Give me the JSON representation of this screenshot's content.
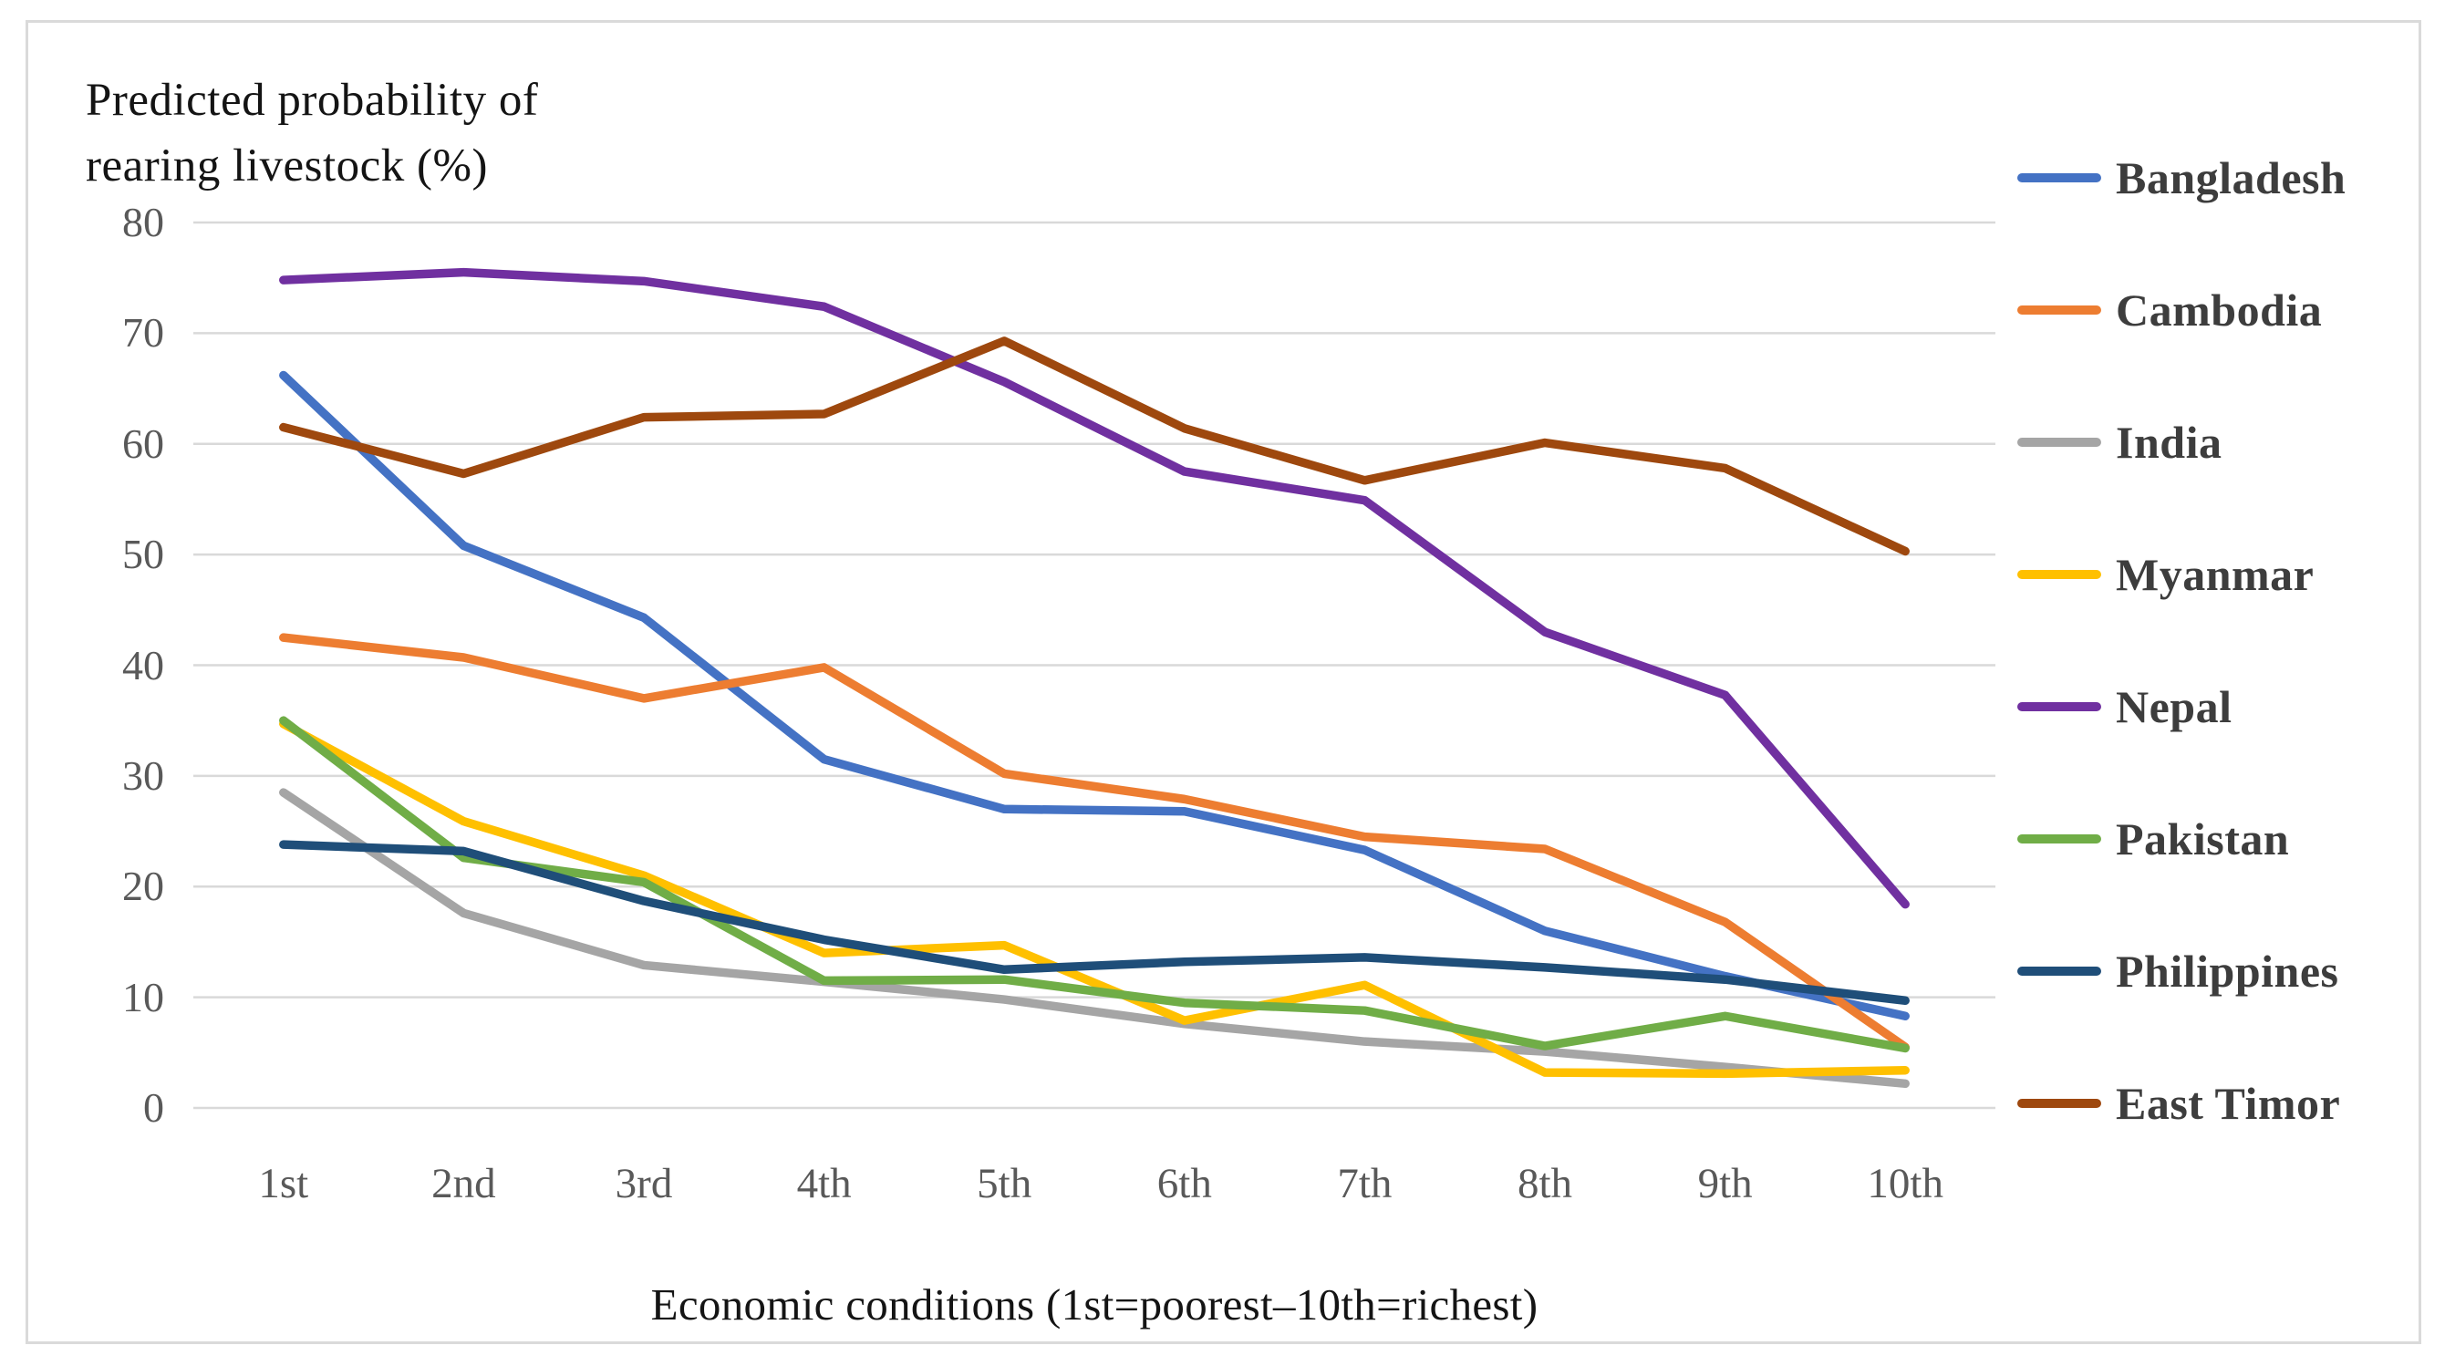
{
  "chart_data": {
    "type": "line",
    "ylabel_lines": [
      "Predicted probability of",
      "rearing livestock (%)"
    ],
    "ylabel": "Predicted probability of rearing livestock (%)",
    "xlabel": "Economic conditions (1st=poorest–10th=richest)",
    "categories": [
      "1st",
      "2nd",
      "3rd",
      "4th",
      "5th",
      "6th",
      "7th",
      "8th",
      "9th",
      "10th"
    ],
    "yticks": [
      0,
      10,
      20,
      30,
      40,
      50,
      60,
      70,
      80
    ],
    "ylim": [
      0,
      80
    ],
    "grid": true,
    "legend_position": "right",
    "gridline_color": "#d9d9d9",
    "tick_color": "#595959",
    "series": [
      {
        "name": "Bangladesh",
        "color": "#4472C4",
        "values": [
          66.2,
          50.8,
          44.3,
          31.5,
          27.0,
          26.8,
          23.3,
          16.0,
          11.9,
          8.3
        ]
      },
      {
        "name": "Cambodia",
        "color": "#ED7D31",
        "values": [
          42.5,
          40.7,
          37.0,
          39.8,
          30.2,
          27.9,
          24.5,
          23.4,
          16.8,
          5.5
        ]
      },
      {
        "name": "India",
        "color": "#A5A5A5",
        "values": [
          28.5,
          17.6,
          12.9,
          11.4,
          9.8,
          7.6,
          6.0,
          5.1,
          3.7,
          2.2
        ]
      },
      {
        "name": "Myanmar",
        "color": "#FFC000",
        "values": [
          34.7,
          25.9,
          21.0,
          14.0,
          14.7,
          7.9,
          11.1,
          3.2,
          3.1,
          3.4
        ]
      },
      {
        "name": "Nepal",
        "color": "#7030A0",
        "values": [
          74.8,
          75.5,
          74.7,
          72.4,
          65.6,
          57.5,
          54.9,
          43.0,
          37.3,
          18.4
        ]
      },
      {
        "name": "Pakistan",
        "color": "#70AD47",
        "values": [
          35.0,
          22.6,
          20.4,
          11.5,
          11.6,
          9.5,
          8.8,
          5.6,
          8.3,
          5.4
        ]
      },
      {
        "name": "Philippines",
        "color": "#1F4E79",
        "values": [
          23.8,
          23.2,
          18.7,
          15.2,
          12.5,
          13.2,
          13.6,
          12.7,
          11.6,
          9.7
        ]
      },
      {
        "name": "East Timor",
        "color": "#9E480E",
        "values": [
          61.5,
          57.3,
          62.4,
          62.7,
          69.3,
          61.4,
          56.7,
          60.1,
          57.8,
          50.3
        ]
      }
    ]
  }
}
